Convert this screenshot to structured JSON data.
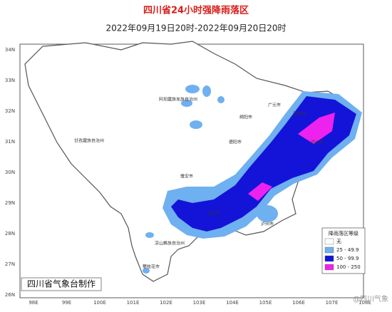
{
  "header": {
    "title": "四川省24小时强降雨落区",
    "subtitle": "2022年09月19日20时-2022年09月20日20时"
  },
  "map": {
    "lat_labels": [
      "34N",
      "33N",
      "32N",
      "31N",
      "30N",
      "29N",
      "28N",
      "27N",
      "26N"
    ],
    "lon_labels": [
      "98E",
      "99E",
      "100E",
      "101E",
      "102E",
      "103E",
      "104E",
      "105E",
      "106E",
      "107E",
      "108E"
    ],
    "places": [
      "甘孜藏族自治州",
      "阿坝藏族羌族自治州",
      "凉山彝族自治州",
      "攀枝花市",
      "雅安市",
      "乐山市",
      "泸州市",
      "广元市",
      "巴中市",
      "达州市",
      "绵阳市",
      "德阳市"
    ]
  },
  "legend": {
    "title": "降雨落区等级",
    "entries": [
      {
        "label": "无",
        "color": "#ffffff"
      },
      {
        "label": "25 - 49.9",
        "color": "#6fb0f0"
      },
      {
        "label": "50 - 99.9",
        "color": "#1414d8"
      },
      {
        "label": "100 - 250",
        "color": "#ee22ee"
      }
    ]
  },
  "footer": {
    "credit": "四川省气象台制作",
    "watermark": "@四川气象"
  }
}
